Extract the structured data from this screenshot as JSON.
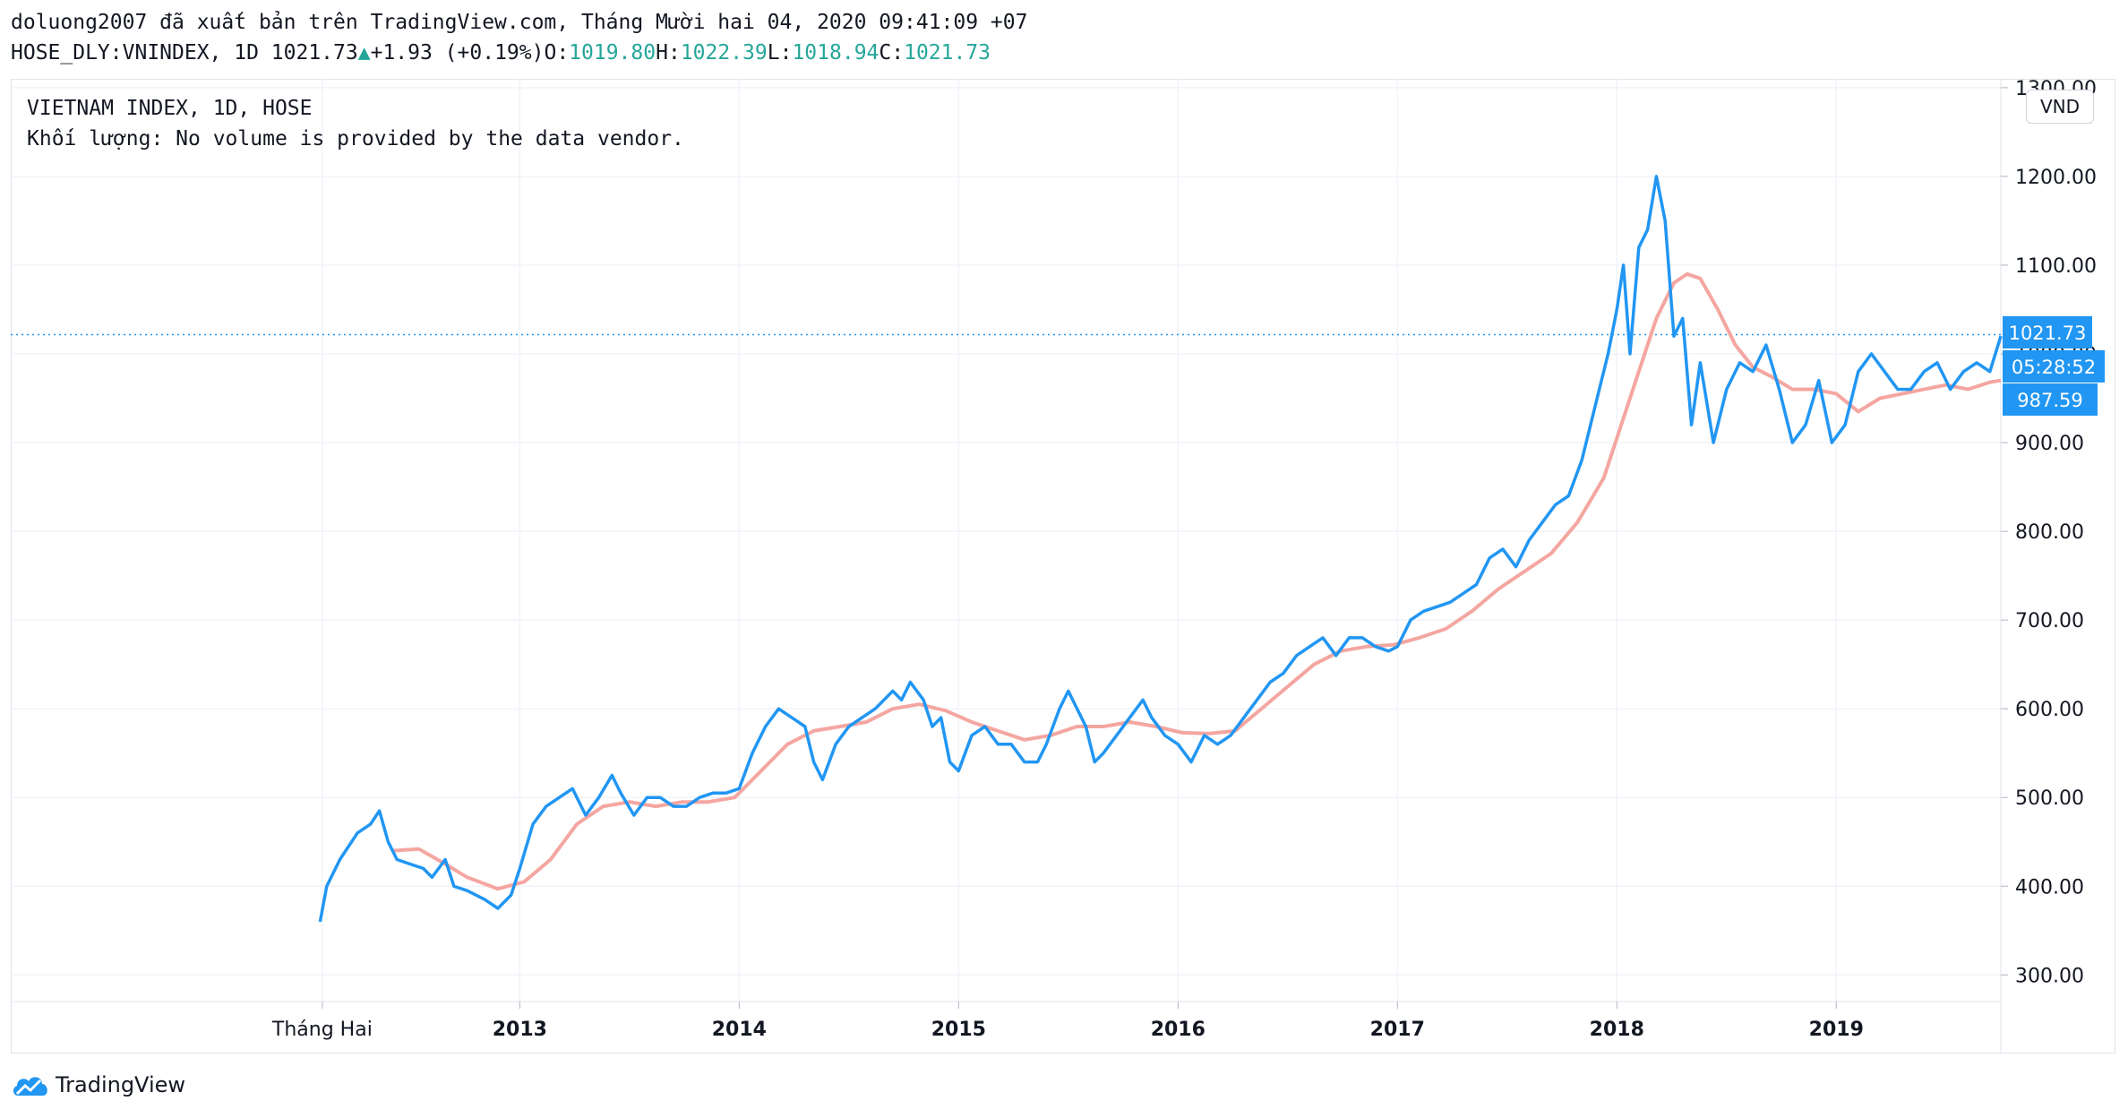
{
  "header": {
    "publisher_line": "doluong2007 đã xuất bản trên TradingView.com, Tháng Mười hai 04, 2020 09:41:09 +07",
    "symbol": "HOSE_DLY:VNINDEX, 1D 1021.73",
    "change": "+1.93 (+0.19%)",
    "open_label": "O:",
    "open_value": "1019.80",
    "high_label": "H:",
    "high_value": "1022.39",
    "low_label": "L:",
    "low_value": "1018.94",
    "close_label": "C:",
    "close_value": "1021.73"
  },
  "legend": {
    "line1": "VIETNAM INDEX, 1D, HOSE",
    "line2": "Khối lượng: No volume is provided by the data vendor."
  },
  "currency": "VND",
  "price_tags": {
    "last_price": "1021.73",
    "countdown": "05:28:52",
    "ma_value": "987.59"
  },
  "footer": {
    "brand": "TradingView"
  },
  "colors": {
    "price_line": "#2196f3",
    "ma_line": "#f4a6a0",
    "tag_bg": "#2196f3",
    "grid": "#f0f3fa"
  },
  "chart_data": {
    "type": "line",
    "y_axis": {
      "ticks": [
        "300.00",
        "400.00",
        "500.00",
        "600.00",
        "700.00",
        "800.00",
        "900.00",
        "1000.00",
        "1100.00",
        "1200.00",
        "1300.00"
      ],
      "range": [
        270,
        1310
      ],
      "position": "right"
    },
    "x_axis": {
      "ticks": [
        {
          "label": "Tháng Hai",
          "t": 2012.1,
          "bold": false
        },
        {
          "label": "2013",
          "t": 2013.0,
          "bold": true
        },
        {
          "label": "2014",
          "t": 2014.0,
          "bold": true
        },
        {
          "label": "2015",
          "t": 2015.0,
          "bold": true
        },
        {
          "label": "2016",
          "t": 2016.0,
          "bold": true
        },
        {
          "label": "2017",
          "t": 2017.0,
          "bold": true
        },
        {
          "label": "2018",
          "t": 2018.0,
          "bold": true
        },
        {
          "label": "2019",
          "t": 2019.0,
          "bold": true
        }
      ],
      "range": [
        2010.68,
        2019.75
      ]
    },
    "grid": true,
    "last_price_line": 1021.73,
    "series": [
      {
        "role": "price",
        "points": [
          [
            2012.09,
            360
          ],
          [
            2012.12,
            400
          ],
          [
            2012.18,
            430
          ],
          [
            2012.26,
            460
          ],
          [
            2012.32,
            470
          ],
          [
            2012.36,
            485
          ],
          [
            2012.4,
            450
          ],
          [
            2012.44,
            430
          ],
          [
            2012.5,
            425
          ],
          [
            2012.56,
            420
          ],
          [
            2012.6,
            410
          ],
          [
            2012.66,
            430
          ],
          [
            2012.7,
            400
          ],
          [
            2012.76,
            395
          ],
          [
            2012.84,
            385
          ],
          [
            2012.9,
            375
          ],
          [
            2012.96,
            390
          ],
          [
            2013.0,
            420
          ],
          [
            2013.06,
            470
          ],
          [
            2013.12,
            490
          ],
          [
            2013.18,
            500
          ],
          [
            2013.24,
            510
          ],
          [
            2013.3,
            480
          ],
          [
            2013.36,
            500
          ],
          [
            2013.42,
            525
          ],
          [
            2013.46,
            505
          ],
          [
            2013.52,
            480
          ],
          [
            2013.58,
            500
          ],
          [
            2013.64,
            500
          ],
          [
            2013.7,
            490
          ],
          [
            2013.76,
            490
          ],
          [
            2013.82,
            500
          ],
          [
            2013.88,
            505
          ],
          [
            2013.94,
            505
          ],
          [
            2014.0,
            510
          ],
          [
            2014.06,
            550
          ],
          [
            2014.12,
            580
          ],
          [
            2014.18,
            600
          ],
          [
            2014.24,
            590
          ],
          [
            2014.3,
            580
          ],
          [
            2014.34,
            540
          ],
          [
            2014.38,
            520
          ],
          [
            2014.44,
            560
          ],
          [
            2014.5,
            580
          ],
          [
            2014.56,
            590
          ],
          [
            2014.62,
            600
          ],
          [
            2014.66,
            610
          ],
          [
            2014.7,
            620
          ],
          [
            2014.74,
            610
          ],
          [
            2014.78,
            630
          ],
          [
            2014.84,
            610
          ],
          [
            2014.88,
            580
          ],
          [
            2014.92,
            590
          ],
          [
            2014.96,
            540
          ],
          [
            2015.0,
            530
          ],
          [
            2015.06,
            570
          ],
          [
            2015.12,
            580
          ],
          [
            2015.18,
            560
          ],
          [
            2015.24,
            560
          ],
          [
            2015.3,
            540
          ],
          [
            2015.36,
            540
          ],
          [
            2015.4,
            560
          ],
          [
            2015.46,
            600
          ],
          [
            2015.5,
            620
          ],
          [
            2015.54,
            600
          ],
          [
            2015.58,
            580
          ],
          [
            2015.62,
            540
          ],
          [
            2015.66,
            550
          ],
          [
            2015.72,
            570
          ],
          [
            2015.78,
            590
          ],
          [
            2015.84,
            610
          ],
          [
            2015.88,
            590
          ],
          [
            2015.94,
            570
          ],
          [
            2016.0,
            560
          ],
          [
            2016.06,
            540
          ],
          [
            2016.12,
            570
          ],
          [
            2016.18,
            560
          ],
          [
            2016.24,
            570
          ],
          [
            2016.3,
            590
          ],
          [
            2016.36,
            610
          ],
          [
            2016.42,
            630
          ],
          [
            2016.48,
            640
          ],
          [
            2016.54,
            660
          ],
          [
            2016.6,
            670
          ],
          [
            2016.66,
            680
          ],
          [
            2016.72,
            660
          ],
          [
            2016.78,
            680
          ],
          [
            2016.84,
            680
          ],
          [
            2016.9,
            670
          ],
          [
            2016.96,
            665
          ],
          [
            2017.0,
            670
          ],
          [
            2017.06,
            700
          ],
          [
            2017.12,
            710
          ],
          [
            2017.18,
            715
          ],
          [
            2017.24,
            720
          ],
          [
            2017.3,
            730
          ],
          [
            2017.36,
            740
          ],
          [
            2017.42,
            770
          ],
          [
            2017.48,
            780
          ],
          [
            2017.54,
            760
          ],
          [
            2017.6,
            790
          ],
          [
            2017.66,
            810
          ],
          [
            2017.72,
            830
          ],
          [
            2017.78,
            840
          ],
          [
            2017.84,
            880
          ],
          [
            2017.88,
            920
          ],
          [
            2017.92,
            960
          ],
          [
            2017.96,
            1000
          ],
          [
            2018.0,
            1050
          ],
          [
            2018.03,
            1100
          ],
          [
            2018.06,
            1000
          ],
          [
            2018.1,
            1120
          ],
          [
            2018.14,
            1140
          ],
          [
            2018.18,
            1200
          ],
          [
            2018.22,
            1150
          ],
          [
            2018.26,
            1020
          ],
          [
            2018.3,
            1040
          ],
          [
            2018.34,
            920
          ],
          [
            2018.38,
            990
          ],
          [
            2018.44,
            900
          ],
          [
            2018.5,
            960
          ],
          [
            2018.56,
            990
          ],
          [
            2018.62,
            980
          ],
          [
            2018.68,
            1010
          ],
          [
            2018.74,
            960
          ],
          [
            2018.8,
            900
          ],
          [
            2018.86,
            920
          ],
          [
            2018.92,
            970
          ],
          [
            2018.98,
            900
          ],
          [
            2019.04,
            920
          ],
          [
            2019.1,
            980
          ],
          [
            2019.16,
            1000
          ],
          [
            2019.22,
            980
          ],
          [
            2019.28,
            960
          ],
          [
            2019.34,
            960
          ],
          [
            2019.4,
            980
          ],
          [
            2019.46,
            990
          ],
          [
            2019.52,
            960
          ],
          [
            2019.58,
            980
          ],
          [
            2019.64,
            990
          ],
          [
            2019.7,
            980
          ],
          [
            2019.75,
            1020
          ]
        ]
      },
      {
        "role": "moving-average",
        "points": [
          [
            2012.42,
            440
          ],
          [
            2012.54,
            442
          ],
          [
            2012.66,
            425
          ],
          [
            2012.76,
            410
          ],
          [
            2012.9,
            397
          ],
          [
            2013.02,
            405
          ],
          [
            2013.14,
            430
          ],
          [
            2013.26,
            470
          ],
          [
            2013.38,
            490
          ],
          [
            2013.5,
            495
          ],
          [
            2013.62,
            490
          ],
          [
            2013.74,
            495
          ],
          [
            2013.86,
            495
          ],
          [
            2013.98,
            500
          ],
          [
            2014.1,
            530
          ],
          [
            2014.22,
            560
          ],
          [
            2014.34,
            575
          ],
          [
            2014.46,
            580
          ],
          [
            2014.58,
            585
          ],
          [
            2014.7,
            600
          ],
          [
            2014.82,
            605
          ],
          [
            2014.94,
            598
          ],
          [
            2015.06,
            585
          ],
          [
            2015.18,
            575
          ],
          [
            2015.3,
            565
          ],
          [
            2015.42,
            570
          ],
          [
            2015.54,
            580
          ],
          [
            2015.66,
            580
          ],
          [
            2015.78,
            585
          ],
          [
            2015.9,
            580
          ],
          [
            2016.02,
            573
          ],
          [
            2016.14,
            572
          ],
          [
            2016.26,
            575
          ],
          [
            2016.38,
            600
          ],
          [
            2016.5,
            625
          ],
          [
            2016.62,
            650
          ],
          [
            2016.74,
            665
          ],
          [
            2016.86,
            670
          ],
          [
            2016.98,
            672
          ],
          [
            2017.1,
            680
          ],
          [
            2017.22,
            690
          ],
          [
            2017.34,
            710
          ],
          [
            2017.46,
            735
          ],
          [
            2017.58,
            755
          ],
          [
            2017.7,
            775
          ],
          [
            2017.82,
            810
          ],
          [
            2017.94,
            860
          ],
          [
            2018.02,
            920
          ],
          [
            2018.1,
            980
          ],
          [
            2018.18,
            1040
          ],
          [
            2018.26,
            1080
          ],
          [
            2018.32,
            1090
          ],
          [
            2018.38,
            1085
          ],
          [
            2018.46,
            1050
          ],
          [
            2018.54,
            1010
          ],
          [
            2018.62,
            985
          ],
          [
            2018.7,
            975
          ],
          [
            2018.8,
            960
          ],
          [
            2018.9,
            960
          ],
          [
            2019.0,
            955
          ],
          [
            2019.1,
            935
          ],
          [
            2019.2,
            950
          ],
          [
            2019.3,
            955
          ],
          [
            2019.4,
            960
          ],
          [
            2019.5,
            965
          ],
          [
            2019.6,
            960
          ],
          [
            2019.7,
            968
          ],
          [
            2019.75,
            970
          ]
        ]
      }
    ]
  }
}
